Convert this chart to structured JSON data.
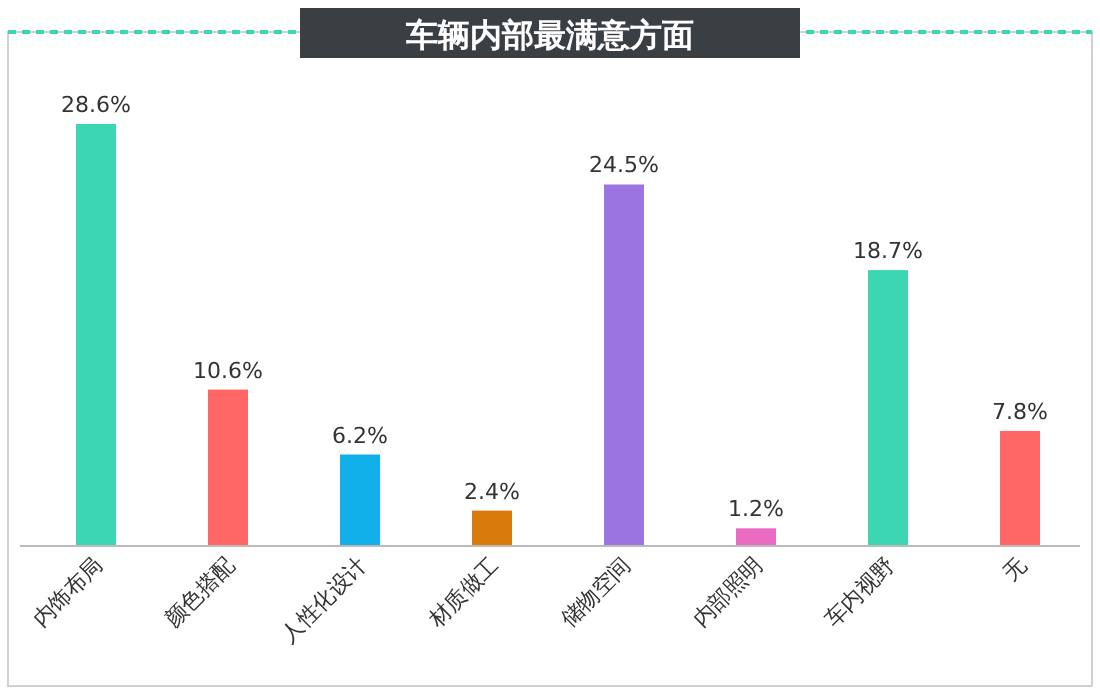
{
  "chart_data": {
    "type": "bar",
    "title": "车辆内部最满意方面",
    "categories": [
      "内饰布局",
      "颜色搭配",
      "人性化设计",
      "材质做工",
      "储物空间",
      "内部照明",
      "车内视野",
      "无"
    ],
    "values": [
      28.6,
      10.6,
      6.2,
      2.4,
      24.5,
      1.2,
      18.7,
      7.8
    ],
    "value_labels": [
      "28.6%",
      "10.6%",
      "6.2%",
      "2.4%",
      "24.5%",
      "1.2%",
      "18.7%",
      "7.8%"
    ],
    "colors": [
      "#3dd6b5",
      "#ff6666",
      "#12b0ea",
      "#d97a0c",
      "#9b74e2",
      "#ea6cc2",
      "#3dd6b5",
      "#ff6666"
    ]
  }
}
